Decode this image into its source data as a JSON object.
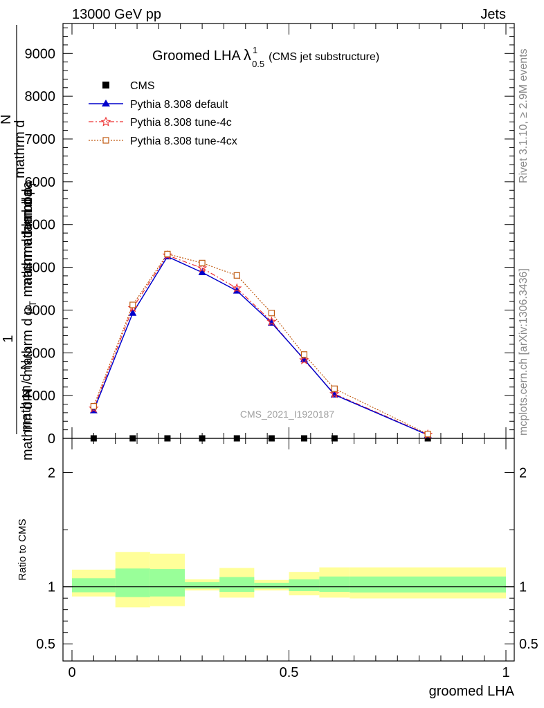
{
  "header": {
    "left": "13000 GeV pp",
    "right": "Jets"
  },
  "title": {
    "main": "Groomed LHA",
    "lambda": "λ",
    "sup": "1",
    "sub": "0.5",
    "note": "(CMS jet substructure)"
  },
  "ylabel": {
    "one": "1",
    "mid": "mathrm d N / mathrm d p",
    "mid_sub": "T",
    "mid_end": " mathrm d lambda",
    "bottom": "mathrm d N",
    "top_a": "mathrm d",
    "top_b": "N",
    "top_c": "mathrm d p",
    "top_c_sub": "T",
    "top_d": "mathrm d lambda"
  },
  "side_text": {
    "rivet": "Rivet 3.1.10, ≥ 2.9M events",
    "mcplots": "mcplots.cern.ch [arXiv:1306.3436]"
  },
  "watermark": "CMS_2021_I1920187",
  "ratio_ylabel": "Ratio to CMS",
  "xlabel": "groomed LHA",
  "colors": {
    "cms": "#000000",
    "default": "#0000cc",
    "tune4c": "#ee3333",
    "tune4cx": "#c05a10",
    "band_yellow": "#ffff99",
    "band_green": "#99ff99"
  },
  "chart_data": {
    "type": "line",
    "x_range": [
      0,
      1
    ],
    "y_range": [
      0,
      9700
    ],
    "ratio_range": [
      0.35,
      2.3
    ],
    "main_y_ticks": [
      0,
      1000,
      2000,
      3000,
      4000,
      5000,
      6000,
      7000,
      8000,
      9000
    ],
    "main_y_tick_labels": [
      "0",
      "1000",
      "2000",
      "3000",
      "4000",
      "5000",
      "6000",
      "7000",
      "8000",
      "9000"
    ],
    "ratio_y_ticks": [
      0.5,
      1,
      2
    ],
    "ratio_y_tick_labels": [
      "0.5",
      "1",
      "2"
    ],
    "x_ticks": [
      0,
      0.5,
      1
    ],
    "x_tick_labels": [
      "0",
      "0.5",
      "1"
    ],
    "series": [
      {
        "name": "CMS",
        "marker": "square",
        "x": [
          0.05,
          0.14,
          0.22,
          0.3,
          0.38,
          0.46,
          0.535,
          0.605,
          0.82
        ],
        "y": [
          0,
          0,
          0,
          0,
          0,
          0,
          0,
          0,
          0
        ]
      },
      {
        "name": "Pythia 8.308 default",
        "marker": "triangle",
        "x": [
          0.05,
          0.14,
          0.22,
          0.3,
          0.38,
          0.46,
          0.535,
          0.605,
          0.82
        ],
        "y": [
          650,
          2930,
          4250,
          3880,
          3450,
          2700,
          1850,
          1020,
          80
        ]
      },
      {
        "name": "Pythia 8.308 tune-4c",
        "marker": "star",
        "x": [
          0.05,
          0.14,
          0.22,
          0.3,
          0.38,
          0.46,
          0.535,
          0.605,
          0.82
        ],
        "y": [
          700,
          3050,
          4280,
          3980,
          3510,
          2730,
          1830,
          1040,
          90
        ]
      },
      {
        "name": "Pythia 8.308 tune-4cx",
        "marker": "open-square",
        "x": [
          0.05,
          0.14,
          0.22,
          0.3,
          0.38,
          0.46,
          0.535,
          0.605,
          0.82
        ],
        "y": [
          750,
          3120,
          4310,
          4100,
          3810,
          2930,
          1960,
          1160,
          100
        ]
      }
    ],
    "ratio_bands": [
      {
        "x0": 0.0,
        "x1": 0.1,
        "yellow": [
          0.915,
          1.15
        ],
        "green": [
          0.952,
          1.075
        ]
      },
      {
        "x0": 0.1,
        "x1": 0.18,
        "yellow": [
          0.82,
          1.305
        ],
        "green": [
          0.91,
          1.16
        ]
      },
      {
        "x0": 0.18,
        "x1": 0.26,
        "yellow": [
          0.83,
          1.29
        ],
        "green": [
          0.915,
          1.155
        ]
      },
      {
        "x0": 0.26,
        "x1": 0.34,
        "yellow": [
          0.968,
          1.065
        ],
        "green": [
          0.984,
          1.04
        ]
      },
      {
        "x0": 0.34,
        "x1": 0.42,
        "yellow": [
          0.905,
          1.165
        ],
        "green": [
          0.955,
          1.085
        ]
      },
      {
        "x0": 0.42,
        "x1": 0.5,
        "yellow": [
          0.968,
          1.06
        ],
        "green": [
          0.984,
          1.035
        ]
      },
      {
        "x0": 0.5,
        "x1": 0.57,
        "yellow": [
          0.925,
          1.13
        ],
        "green": [
          0.962,
          1.065
        ]
      },
      {
        "x0": 0.57,
        "x1": 0.64,
        "yellow": [
          0.905,
          1.17
        ],
        "green": [
          0.955,
          1.09
        ]
      },
      {
        "x0": 0.64,
        "x1": 1.0,
        "yellow": [
          0.898,
          1.17
        ],
        "green": [
          0.95,
          1.09
        ]
      }
    ],
    "legend": [
      "CMS",
      "Pythia 8.308 default",
      "Pythia 8.308 tune-4c",
      "Pythia 8.308 tune-4cx"
    ],
    "legend_position": "top-left"
  }
}
